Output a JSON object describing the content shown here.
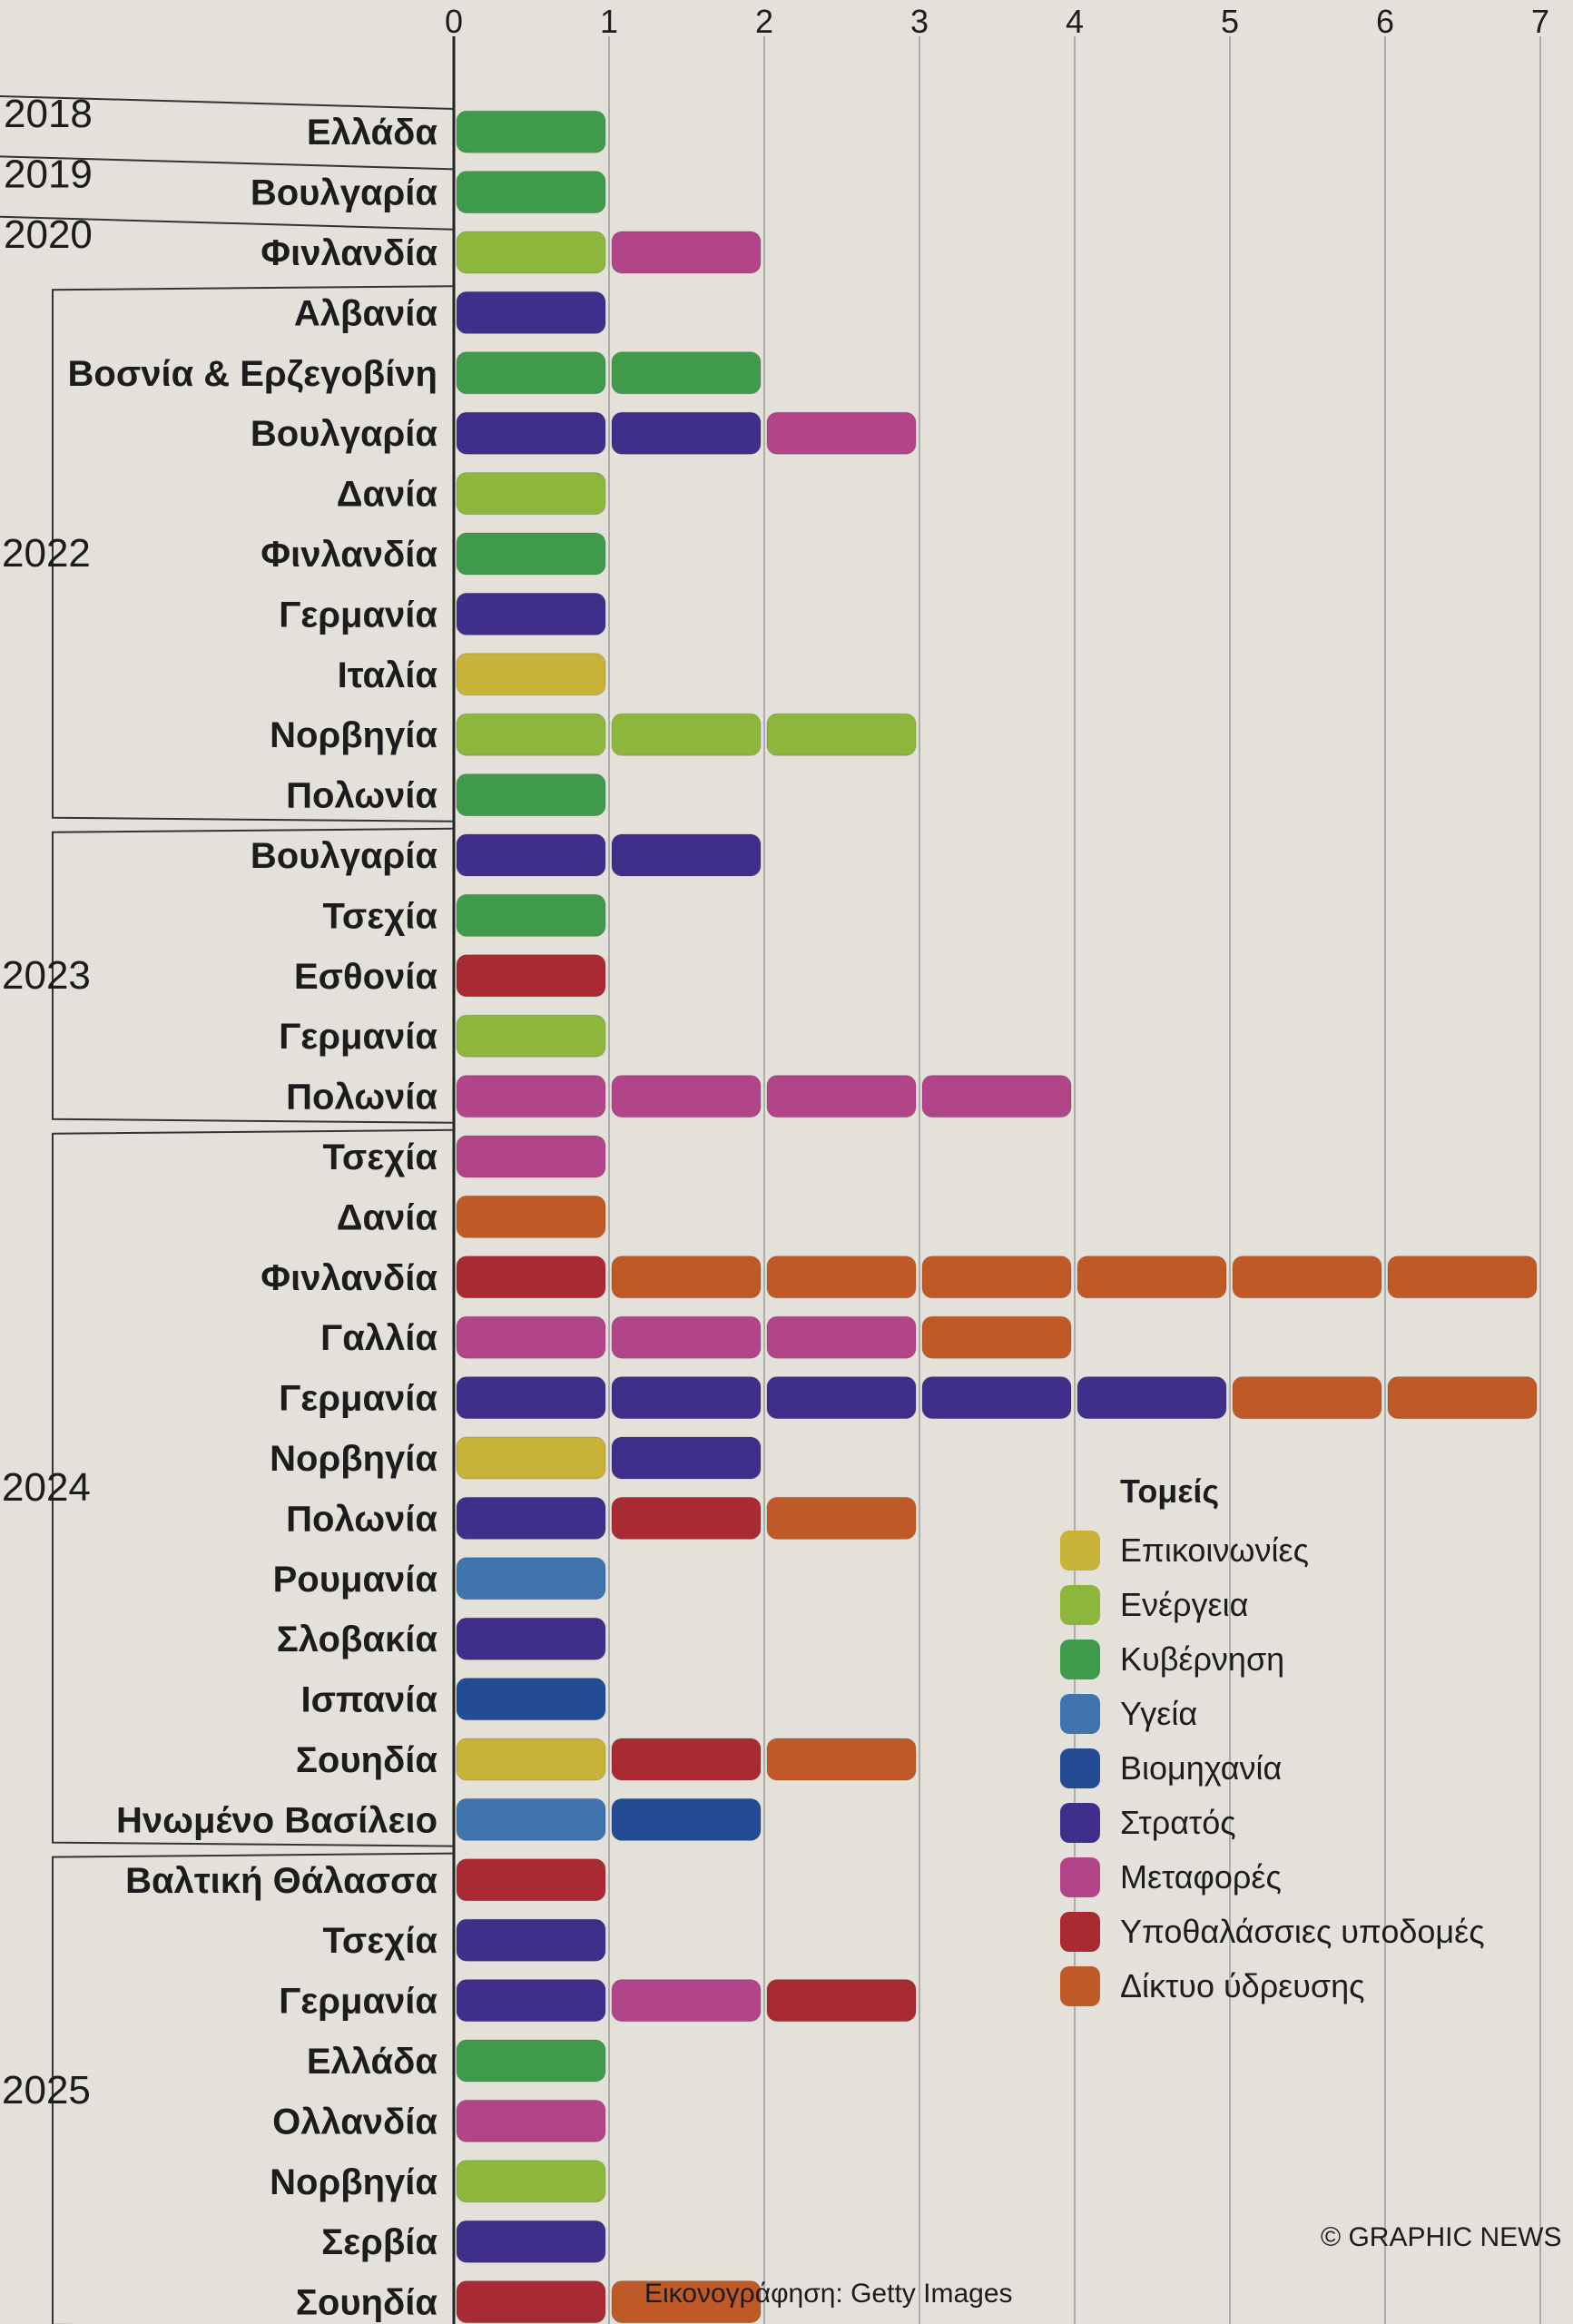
{
  "chart_data": {
    "type": "bar",
    "stacked": true,
    "x_ticks": [
      "0",
      "1",
      "2",
      "3",
      "4",
      "5",
      "6",
      "7"
    ],
    "xlim": [
      0,
      7
    ],
    "grid": true,
    "legend_position": "bottom-right",
    "sectors": [
      {
        "name": "Επικοινωνίες",
        "color": "#c8b23a"
      },
      {
        "name": "Ενέργεια",
        "color": "#8cb63c"
      },
      {
        "name": "Κυβέρνηση",
        "color": "#3f9a4c"
      },
      {
        "name": "Υγεία",
        "color": "#3f75ac"
      },
      {
        "name": "Βιομηχανία",
        "color": "#234c94"
      },
      {
        "name": "Στρατός",
        "color": "#3f2f8a"
      },
      {
        "name": "Μεταφορές",
        "color": "#b2448a"
      },
      {
        "name": "Υποθαλάσσιες υποδομές",
        "color": "#a82a33"
      },
      {
        "name": "Δίκτυο ύδρευσης",
        "color": "#bf5a28"
      }
    ],
    "groups": [
      {
        "year": "2018",
        "rows": [
          {
            "country": "Ελλάδα",
            "segments": [
              "Κυβέρνηση"
            ]
          }
        ]
      },
      {
        "year": "2019",
        "rows": [
          {
            "country": "Βουλγαρία",
            "segments": [
              "Κυβέρνηση"
            ]
          }
        ]
      },
      {
        "year": "2020",
        "rows": [
          {
            "country": "Φινλανδία",
            "segments": [
              "Ενέργεια",
              "Μεταφορές"
            ]
          }
        ]
      },
      {
        "year": "2022",
        "rows": [
          {
            "country": "Αλβανία",
            "segments": [
              "Στρατός"
            ]
          },
          {
            "country": "Βοσνία & Ερζεγοβίνη",
            "segments": [
              "Κυβέρνηση",
              "Κυβέρνηση"
            ]
          },
          {
            "country": "Βουλγαρία",
            "segments": [
              "Στρατός",
              "Στρατός",
              "Μεταφορές"
            ]
          },
          {
            "country": "Δανία",
            "segments": [
              "Ενέργεια"
            ]
          },
          {
            "country": "Φινλανδία",
            "segments": [
              "Κυβέρνηση"
            ]
          },
          {
            "country": "Γερμανία",
            "segments": [
              "Στρατός"
            ]
          },
          {
            "country": "Ιταλία",
            "segments": [
              "Επικοινωνίες"
            ]
          },
          {
            "country": "Νορβηγία",
            "segments": [
              "Ενέργεια",
              "Ενέργεια",
              "Ενέργεια"
            ]
          },
          {
            "country": "Πολωνία",
            "segments": [
              "Κυβέρνηση"
            ]
          }
        ]
      },
      {
        "year": "2023",
        "rows": [
          {
            "country": "Βουλγαρία",
            "segments": [
              "Στρατός",
              "Στρατός"
            ]
          },
          {
            "country": "Τσεχία",
            "segments": [
              "Κυβέρνηση"
            ]
          },
          {
            "country": "Εσθονία",
            "segments": [
              "Υποθαλάσσιες υποδομές"
            ]
          },
          {
            "country": "Γερμανία",
            "segments": [
              "Ενέργεια"
            ]
          },
          {
            "country": "Πολωνία",
            "segments": [
              "Μεταφορές",
              "Μεταφορές",
              "Μεταφορές",
              "Μεταφορές"
            ]
          }
        ]
      },
      {
        "year": "2024",
        "rows": [
          {
            "country": "Τσεχία",
            "segments": [
              "Μεταφορές"
            ]
          },
          {
            "country": "Δανία",
            "segments": [
              "Δίκτυο ύδρευσης"
            ]
          },
          {
            "country": "Φινλανδία",
            "segments": [
              "Υποθαλάσσιες υποδομές",
              "Δίκτυο ύδρευσης",
              "Δίκτυο ύδρευσης",
              "Δίκτυο ύδρευσης",
              "Δίκτυο ύδρευσης",
              "Δίκτυο ύδρευσης",
              "Δίκτυο ύδρευσης"
            ]
          },
          {
            "country": "Γαλλία",
            "segments": [
              "Μεταφορές",
              "Μεταφορές",
              "Μεταφορές",
              "Δίκτυο ύδρευσης"
            ]
          },
          {
            "country": "Γερμανία",
            "segments": [
              "Στρατός",
              "Στρατός",
              "Στρατός",
              "Στρατός",
              "Στρατός",
              "Δίκτυο ύδρευσης",
              "Δίκτυο ύδρευσης"
            ]
          },
          {
            "country": "Νορβηγία",
            "segments": [
              "Επικοινωνίες",
              "Στρατός"
            ]
          },
          {
            "country": "Πολωνία",
            "segments": [
              "Στρατός",
              "Υποθαλάσσιες υποδομές",
              "Δίκτυο ύδρευσης"
            ]
          },
          {
            "country": "Ρουμανία",
            "segments": [
              "Υγεία"
            ]
          },
          {
            "country": "Σλοβακία",
            "segments": [
              "Στρατός"
            ]
          },
          {
            "country": "Ισπανία",
            "segments": [
              "Βιομηχανία"
            ]
          },
          {
            "country": "Σουηδία",
            "segments": [
              "Επικοινωνίες",
              "Υποθαλάσσιες υποδομές",
              "Δίκτυο ύδρευσης"
            ]
          },
          {
            "country": "Ηνωμένο Βασίλειο",
            "segments": [
              "Υγεία",
              "Βιομηχανία"
            ]
          }
        ]
      },
      {
        "year": "2025",
        "rows": [
          {
            "country": "Βαλτική Θάλασσα",
            "segments": [
              "Υποθαλάσσιες υποδομές"
            ]
          },
          {
            "country": "Τσεχία",
            "segments": [
              "Στρατός"
            ]
          },
          {
            "country": "Γερμανία",
            "segments": [
              "Στρατός",
              "Μεταφορές",
              "Υποθαλάσσιες υποδομές"
            ]
          },
          {
            "country": "Ελλάδα",
            "segments": [
              "Κυβέρνηση"
            ]
          },
          {
            "country": "Ολλανδία",
            "segments": [
              "Μεταφορές"
            ]
          },
          {
            "country": "Νορβηγία",
            "segments": [
              "Ενέργεια"
            ]
          },
          {
            "country": "Σερβία",
            "segments": [
              "Στρατός"
            ]
          },
          {
            "country": "Σουηδία",
            "segments": [
              "Υποθαλάσσιες υποδομές",
              "Δίκτυο ύδρευσης"
            ]
          }
        ]
      }
    ]
  },
  "legend": {
    "title": "Τομείς",
    "items": [
      {
        "label": "Επικοινωνίες",
        "color": "#c8b23a"
      },
      {
        "label": "Ενέργεια",
        "color": "#8cb63c"
      },
      {
        "label": "Κυβέρνηση",
        "color": "#3f9a4c"
      },
      {
        "label": "Υγεία",
        "color": "#3f75ac"
      },
      {
        "label": "Βιομηχανία",
        "color": "#234c94"
      },
      {
        "label": "Στρατός",
        "color": "#3f2f8a"
      },
      {
        "label": "Μεταφορές",
        "color": "#b2448a"
      },
      {
        "label": "Υποθαλάσσιες υποδομές",
        "color": "#a82a33"
      },
      {
        "label": "Δίκτυο ύδρευσης",
        "color": "#bf5a28"
      }
    ]
  },
  "footer": {
    "credit": "Εικονογράφηση: Getty Images",
    "copyright": "© GRAPHIC NEWS"
  }
}
